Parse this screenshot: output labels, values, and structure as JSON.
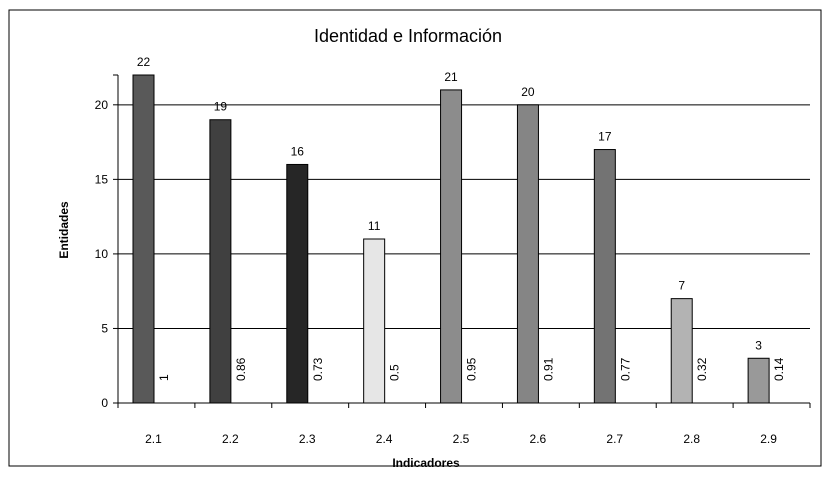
{
  "chart_data": {
    "type": "bar",
    "title": "Identidad e Información",
    "xlabel": "Indicadores",
    "ylabel": "Entidades",
    "categories": [
      "2.1",
      "2.2",
      "2.3",
      "2.4",
      "2.5",
      "2.6",
      "2.7",
      "2.8",
      "2.9"
    ],
    "values": [
      22,
      19,
      16,
      11,
      21,
      20,
      17,
      7,
      3
    ],
    "ratios": [
      "1",
      "0.86",
      "0.73",
      "0.5",
      "0.95",
      "0.91",
      "0.77",
      "0.32",
      "0.14"
    ],
    "value_labels": [
      "22",
      "19",
      "16",
      "11",
      "21",
      "20",
      "17",
      "7",
      "3"
    ],
    "ylim": [
      0,
      22
    ],
    "yticks": [
      "0",
      "5",
      "10",
      "15",
      "20"
    ],
    "grid": true,
    "legend": "none",
    "bar_colors": [
      "#595959",
      "#404040",
      "#262626",
      "#e6e6e6",
      "#8c8c8c",
      "#858585",
      "#737373",
      "#b3b3b3",
      "#999999"
    ]
  }
}
